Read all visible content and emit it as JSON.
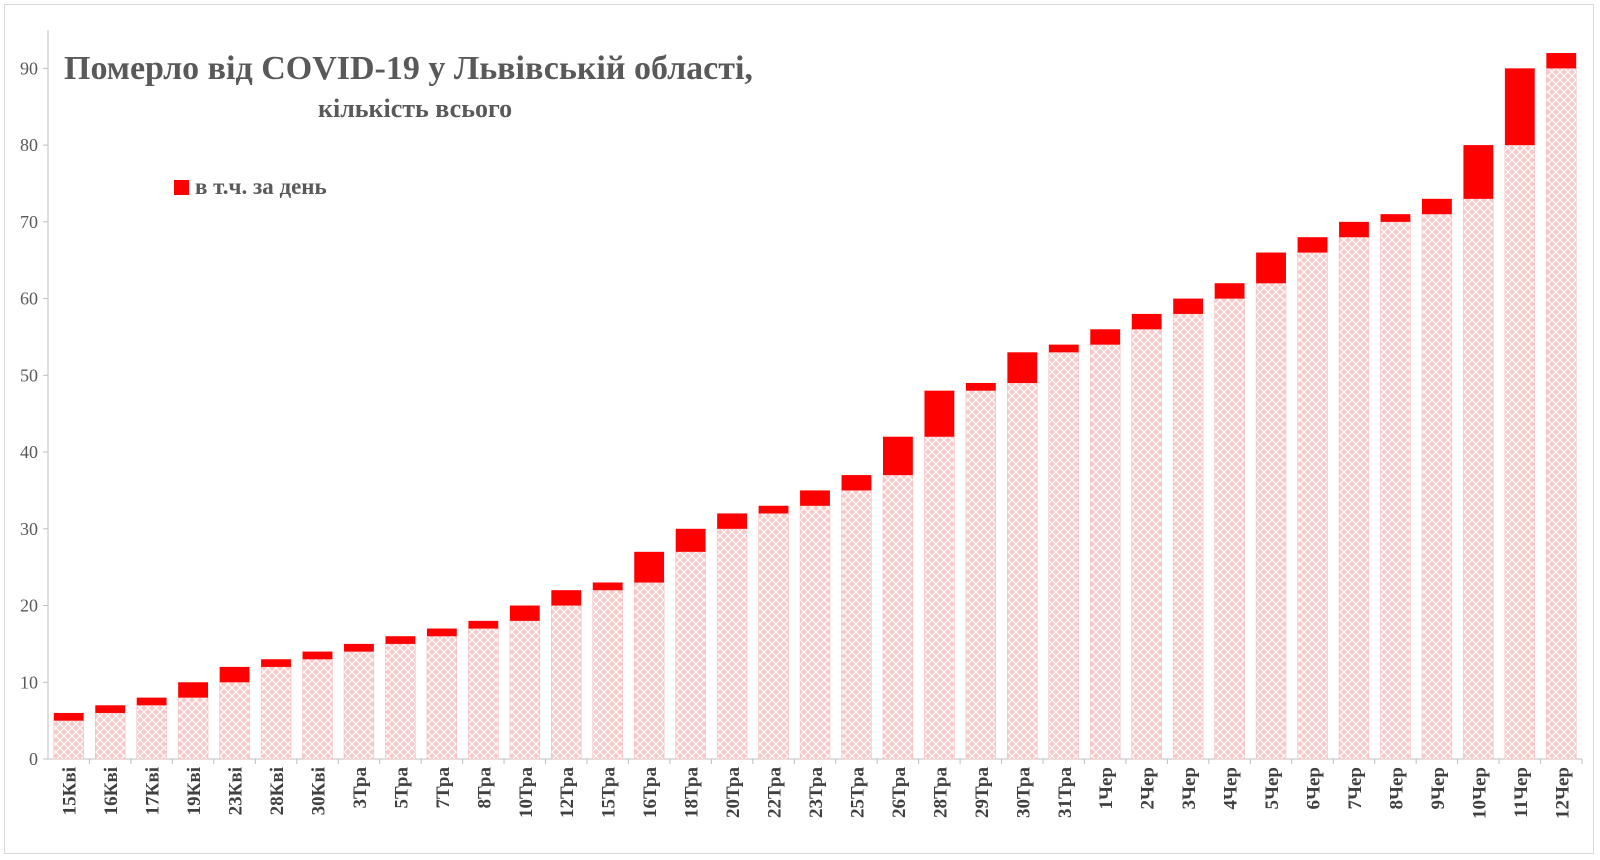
{
  "chart_data": {
    "type": "bar",
    "stacked": true,
    "title": "Померло від COVID-19 у Львівській області,",
    "subtitle": "кількість всього",
    "categories": [
      "15Кві",
      "16Кві",
      "17Кві",
      "19Кві",
      "23Кві",
      "28Кві",
      "30Кві",
      "3Тра",
      "5Тра",
      "7Тра",
      "8Тра",
      "10Тра",
      "12Тра",
      "15Тра",
      "16Тра",
      "18Тра",
      "20Тра",
      "22Тра",
      "23Тра",
      "25Тра",
      "26Тра",
      "28Тра",
      "29Тра",
      "30Тра",
      "31Тра",
      "1Чер",
      "2Чер",
      "3Чер",
      "4Чер",
      "5Чер",
      "6Чер",
      "7Чер",
      "8Чер",
      "9Чер",
      "10Чер",
      "11Чер",
      "12Чер"
    ],
    "series": [
      {
        "values": [
          5,
          6,
          7,
          8,
          10,
          12,
          13,
          14,
          15,
          16,
          17,
          18,
          20,
          22,
          23,
          27,
          30,
          32,
          33,
          35,
          37,
          42,
          48,
          49,
          53,
          54,
          56,
          58,
          60,
          62,
          66,
          68,
          70,
          71,
          73,
          80,
          90
        ],
        "color": "#f4b6b6",
        "pattern": "hatched"
      },
      {
        "name": "в т.ч. за день",
        "values": [
          1,
          1,
          1,
          2,
          2,
          1,
          1,
          1,
          1,
          1,
          1,
          2,
          2,
          1,
          4,
          3,
          2,
          1,
          2,
          2,
          5,
          6,
          1,
          4,
          1,
          2,
          2,
          2,
          2,
          4,
          2,
          2,
          1,
          2,
          7,
          10,
          2
        ],
        "color": "#ff0000"
      }
    ],
    "yticks": [
      0,
      10,
      20,
      30,
      40,
      50,
      60,
      70,
      80,
      90
    ],
    "ylim": [
      0,
      95
    ],
    "legend_position": "top-left",
    "grid": false
  }
}
